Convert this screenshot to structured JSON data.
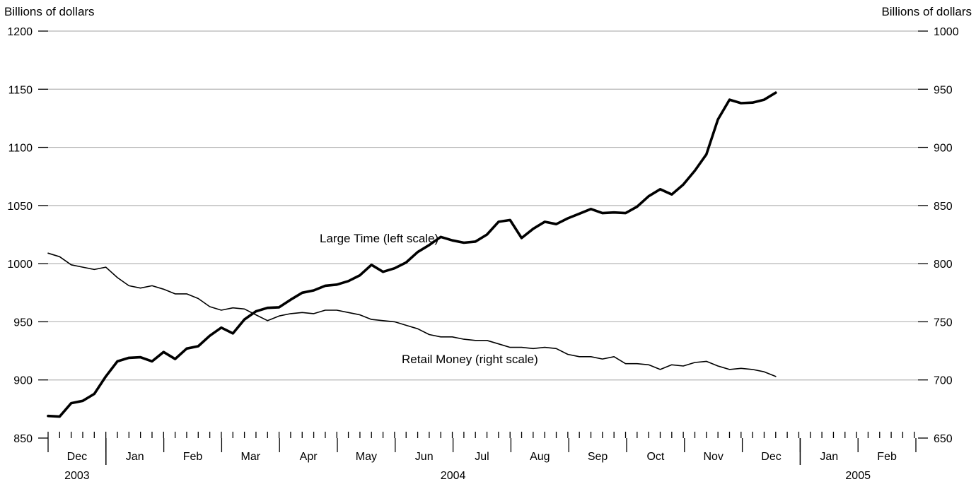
{
  "chart_data": {
    "type": "line",
    "left_axis_label": "Billions of dollars",
    "right_axis_label": "Billions of dollars",
    "left_ylim": [
      850,
      1200
    ],
    "right_ylim": [
      650,
      1000
    ],
    "left_ticks": [
      850,
      900,
      950,
      1000,
      1050,
      1100,
      1150,
      1200
    ],
    "right_ticks": [
      650,
      700,
      750,
      800,
      850,
      900,
      950,
      1000
    ],
    "grid": true,
    "months": [
      "Dec",
      "Jan",
      "Feb",
      "Mar",
      "Apr",
      "May",
      "Jun",
      "Jul",
      "Aug",
      "Sep",
      "Oct",
      "Nov",
      "Dec",
      "Jan",
      "Feb"
    ],
    "years": [
      {
        "label": "2003",
        "months": [
          "Dec"
        ]
      },
      {
        "label": "2004",
        "months": [
          "Jan",
          "Feb",
          "Mar",
          "Apr",
          "May",
          "Jun",
          "Jul",
          "Aug",
          "Sep",
          "Oct",
          "Nov",
          "Dec"
        ]
      },
      {
        "label": "2005",
        "months": [
          "Jan",
          "Feb"
        ]
      }
    ],
    "x_unit": "weeks since first week of Dec 2003",
    "series": [
      {
        "name": "Large Time (left scale)",
        "axis": "left",
        "values": [
          869,
          868.5,
          880,
          882,
          888,
          903,
          916,
          919,
          919.5,
          916,
          924,
          918,
          927,
          929,
          938,
          945,
          940,
          952,
          959,
          962,
          962.5,
          969,
          975,
          977,
          981,
          982,
          985,
          990,
          999,
          993,
          996,
          1001,
          1010,
          1016,
          1023,
          1020,
          1018,
          1019,
          1025,
          1036,
          1037.5,
          1022,
          1030,
          1036,
          1034,
          1039,
          1043,
          1047,
          1043.5,
          1044,
          1043.5,
          1049,
          1058,
          1064,
          1059.5,
          1068,
          1080,
          1094,
          1124,
          1141,
          1138,
          1138.5,
          1141,
          1147
        ]
      },
      {
        "name": "Retail Money (right scale)",
        "axis": "right",
        "values": [
          809,
          806,
          799,
          797,
          795,
          797,
          788,
          781,
          779,
          781,
          778,
          774,
          774,
          770,
          763,
          760,
          762,
          761,
          756,
          751,
          755,
          757,
          758,
          757,
          760,
          760,
          758,
          756,
          752,
          751,
          750,
          747,
          744,
          739,
          737,
          737,
          735,
          734,
          734,
          731,
          728,
          728,
          727,
          728,
          727,
          722,
          720,
          720,
          718,
          720,
          714,
          714,
          713,
          709,
          713,
          712,
          715,
          716,
          712,
          709,
          710,
          709,
          707,
          703
        ]
      }
    ],
    "annotations": [
      "Large Time (left scale)",
      "Retail Money (right scale)"
    ]
  }
}
